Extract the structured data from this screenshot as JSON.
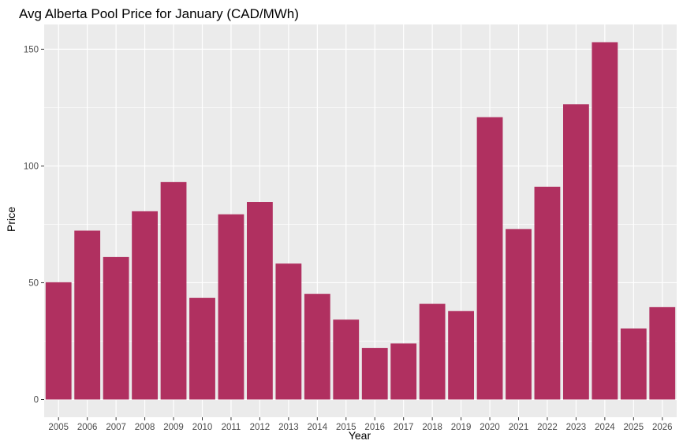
{
  "chart_data": {
    "type": "bar",
    "title": "Avg Alberta Pool Price for January (CAD/MWh)",
    "xlabel": "Year",
    "ylabel": "Price",
    "categories": [
      "2005",
      "2006",
      "2007",
      "2008",
      "2009",
      "2010",
      "2011",
      "2012",
      "2013",
      "2014",
      "2015",
      "2016",
      "2017",
      "2018",
      "2019",
      "2020",
      "2021",
      "2022",
      "2023",
      "2024",
      "2025",
      "2026"
    ],
    "values": [
      50.2,
      72.3,
      61.0,
      80.6,
      93.1,
      43.5,
      79.3,
      84.6,
      58.2,
      45.2,
      34.2,
      22.1,
      24.0,
      41.0,
      37.9,
      120.9,
      73.0,
      91.1,
      126.4,
      153.0,
      30.4,
      39.6
    ],
    "yticks": [
      0,
      50,
      100,
      150
    ],
    "ylim": [
      -7.6,
      160.6
    ],
    "grid": true,
    "colors": {
      "bar": "#B03060",
      "panel": "#EBEBEB",
      "grid": "#FFFFFF"
    }
  }
}
